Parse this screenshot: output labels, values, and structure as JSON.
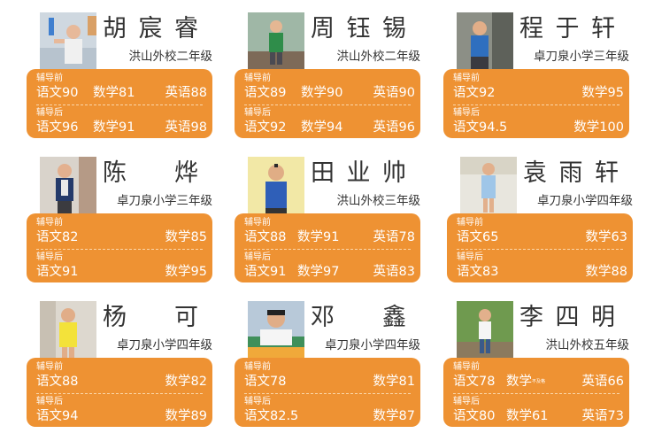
{
  "students": [
    {
      "name": [
        "胡",
        "宸",
        "睿"
      ],
      "school": "洪山外校二年级",
      "before_label": "辅导前",
      "after_label": "辅导后",
      "before": [
        "语文90",
        "数学81",
        "英语88"
      ],
      "after": [
        "语文96",
        "数学91",
        "英语98"
      ]
    },
    {
      "name": [
        "周",
        "钰",
        "锡"
      ],
      "school": "洪山外校二年级",
      "before_label": "辅导前",
      "after_label": "辅导后",
      "before": [
        "语文89",
        "数学90",
        "英语90"
      ],
      "after": [
        "语文92",
        "数学94",
        "英语96"
      ]
    },
    {
      "name": [
        "程",
        "于",
        "轩"
      ],
      "school": "卓刀泉小学三年级",
      "before_label": "辅导前",
      "after_label": "辅导后",
      "before": [
        "语文92",
        "数学95"
      ],
      "after": [
        "语文94.5",
        "数学100"
      ]
    },
    {
      "name": [
        "陈",
        "烨"
      ],
      "school": "卓刀泉小学三年级",
      "before_label": "辅导前",
      "after_label": "辅导后",
      "before": [
        "语文82",
        "数学85"
      ],
      "after": [
        "语文91",
        "数学95"
      ]
    },
    {
      "name": [
        "田",
        "业",
        "帅"
      ],
      "school": "洪山外校三年级",
      "before_label": "辅导前",
      "after_label": "辅导后",
      "before": [
        "语文88",
        "数学91",
        "英语78"
      ],
      "after": [
        "语文91",
        "数学97",
        "英语83"
      ]
    },
    {
      "name": [
        "袁",
        "雨",
        "轩"
      ],
      "school": "卓刀泉小学四年级",
      "before_label": "辅导前",
      "after_label": "辅导后",
      "before": [
        "语文65",
        "数学63"
      ],
      "after": [
        "语文83",
        "数学88"
      ]
    },
    {
      "name": [
        "杨",
        "可"
      ],
      "school": "卓刀泉小学四年级",
      "before_label": "辅导前",
      "after_label": "辅导后",
      "before": [
        "语文88",
        "数学82"
      ],
      "after": [
        "语文94",
        "数学89"
      ]
    },
    {
      "name": [
        "邓",
        "鑫"
      ],
      "school": "卓刀泉小学四年级",
      "before_label": "辅导前",
      "after_label": "辅导后",
      "before": [
        "语文78",
        "数学81"
      ],
      "after": [
        "语文82.5",
        "数学87"
      ]
    },
    {
      "name": [
        "李",
        "四",
        "明"
      ],
      "school": "洪山外校五年级",
      "before_label": "辅导前",
      "after_label": "辅导后",
      "before": [
        "语文78",
        "数学",
        "英语66"
      ],
      "before_note": "不及格",
      "after": [
        "语文80",
        "数学61",
        "英语73"
      ]
    }
  ],
  "colors": {
    "panel": "#ee9233",
    "text": "#333333",
    "score_text": "#ffffff"
  }
}
